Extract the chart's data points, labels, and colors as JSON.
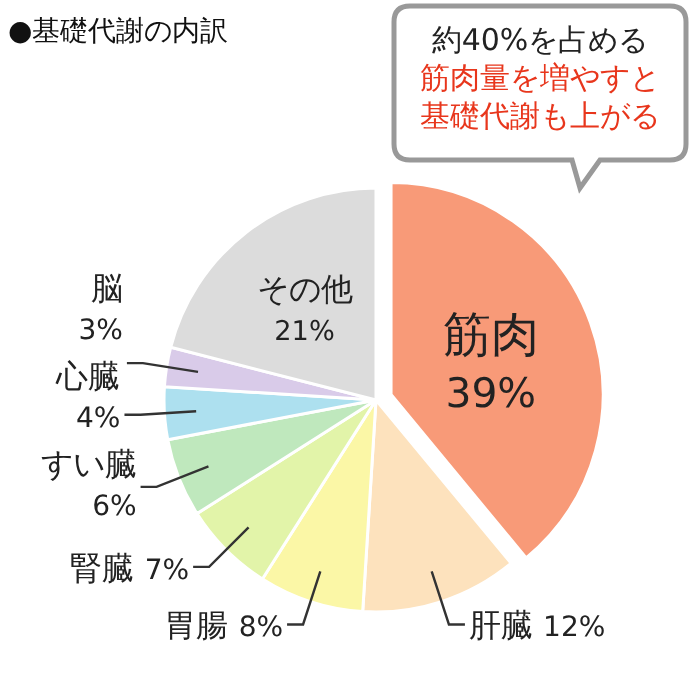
{
  "chart_data": {
    "type": "pie",
    "title": "●基礎代謝の内訳",
    "categories": [
      "筋肉",
      "肝臓",
      "胃腸",
      "腎臓",
      "すい臓",
      "心臓",
      "脳",
      "その他"
    ],
    "values": [
      39,
      12,
      8,
      7,
      6,
      4,
      3,
      21
    ],
    "value_labels": [
      "39%",
      "12%",
      "8%",
      "7%",
      "6%",
      "4%",
      "3%",
      "21%"
    ],
    "colors": [
      "#f89a78",
      "#fde2bd",
      "#fbf7a6",
      "#e2f4a9",
      "#bfe8bd",
      "#ade0ef",
      "#d9cbe9",
      "#dcdcdc"
    ],
    "annotations": [
      "約40%を占める",
      "筋肉量を増やすと",
      "基礎代謝も上がる"
    ]
  }
}
